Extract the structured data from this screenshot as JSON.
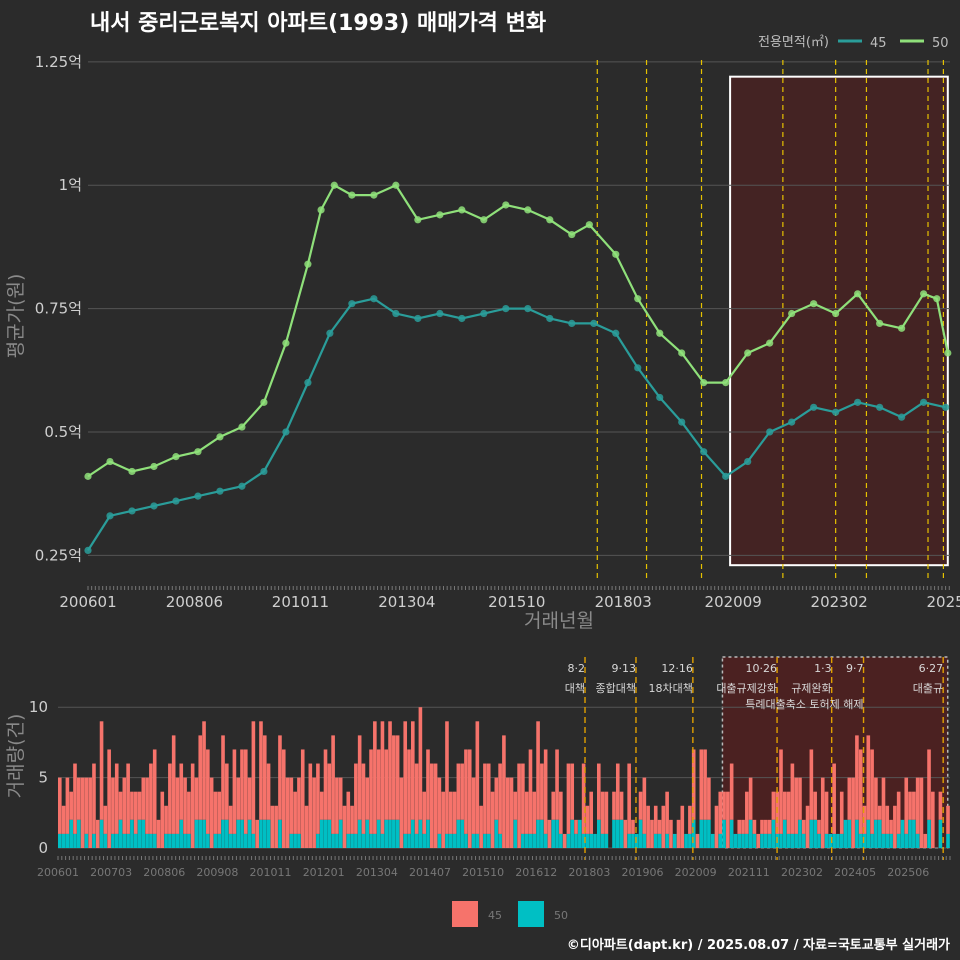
{
  "title": "내서 중리근로복지 아파트(1993) 매매가격 변화",
  "footer": "©디아파트(dapt.kr) / 2025.08.07 / 자료=국토교통부 실거래가",
  "colors": {
    "s45": "#2a9d9a",
    "s50": "#8fe07a",
    "bar45": "#f6736b",
    "bar50": "#00bfc4",
    "highlight": "#5a1e1e",
    "vline": "#e6c200",
    "grid": "#555555"
  },
  "chart_data": [
    {
      "type": "line",
      "ylabel": "평균가(원)",
      "xlabel": "거래년월",
      "legend_title": "전용면적(㎡)",
      "legend_position": "top-right",
      "grid": true,
      "xlim": [
        2006.0,
        2025.6
      ],
      "ylim": [
        0.2,
        1.27
      ],
      "y_ticks": [
        {
          "v": 0.25,
          "label": "0.25억"
        },
        {
          "v": 0.5,
          "label": "0.5억"
        },
        {
          "v": 0.75,
          "label": "0.75억"
        },
        {
          "v": 1.0,
          "label": "1억"
        },
        {
          "v": 1.25,
          "label": "1.25억"
        }
      ],
      "x_ticks": [
        {
          "v": 2006.0,
          "label": "200601"
        },
        {
          "v": 2008.42,
          "label": "200806"
        },
        {
          "v": 2010.83,
          "label": "201011"
        },
        {
          "v": 2013.25,
          "label": "201304"
        },
        {
          "v": 2015.75,
          "label": "201510"
        },
        {
          "v": 2018.17,
          "label": "201803"
        },
        {
          "v": 2020.67,
          "label": "202009"
        },
        {
          "v": 2023.08,
          "label": "202302"
        },
        {
          "v": 2025.5,
          "label": "2025"
        }
      ],
      "highlight_range": [
        2020.6,
        2025.55
      ],
      "event_lines": [
        2017.58,
        2018.7,
        2019.95,
        2021.8,
        2023.0,
        2023.7,
        2025.1,
        2025.45
      ],
      "series": [
        {
          "name": "45",
          "x": [
            2006.0,
            2006.5,
            2007.0,
            2007.5,
            2008.0,
            2008.5,
            2009.0,
            2009.5,
            2010.0,
            2010.5,
            2011.0,
            2011.5,
            2012.0,
            2012.5,
            2013.0,
            2013.5,
            2014.0,
            2014.5,
            2015.0,
            2015.5,
            2016.0,
            2016.5,
            2017.0,
            2017.5,
            2018.0,
            2018.5,
            2019.0,
            2019.5,
            2020.0,
            2020.5,
            2021.0,
            2021.5,
            2022.0,
            2022.5,
            2023.0,
            2023.5,
            2024.0,
            2024.5,
            2025.0,
            2025.5
          ],
          "y": [
            0.26,
            0.33,
            0.34,
            0.35,
            0.36,
            0.37,
            0.38,
            0.39,
            0.42,
            0.5,
            0.6,
            0.7,
            0.76,
            0.77,
            0.74,
            0.73,
            0.74,
            0.73,
            0.74,
            0.75,
            0.75,
            0.73,
            0.72,
            0.72,
            0.7,
            0.63,
            0.57,
            0.52,
            0.46,
            0.41,
            0.44,
            0.5,
            0.52,
            0.55,
            0.54,
            0.56,
            0.55,
            0.53,
            0.56,
            0.55
          ]
        },
        {
          "name": "50",
          "x": [
            2006.0,
            2006.5,
            2007.0,
            2007.5,
            2008.0,
            2008.5,
            2009.0,
            2009.5,
            2010.0,
            2010.5,
            2011.0,
            2011.3,
            2011.6,
            2012.0,
            2012.5,
            2013.0,
            2013.5,
            2014.0,
            2014.5,
            2015.0,
            2015.5,
            2016.0,
            2016.5,
            2017.0,
            2017.4,
            2018.0,
            2018.5,
            2019.0,
            2019.5,
            2020.0,
            2020.5,
            2021.0,
            2021.5,
            2022.0,
            2022.5,
            2023.0,
            2023.5,
            2024.0,
            2024.5,
            2025.0,
            2025.3,
            2025.55
          ],
          "y": [
            0.41,
            0.44,
            0.42,
            0.43,
            0.45,
            0.46,
            0.49,
            0.51,
            0.56,
            0.68,
            0.84,
            0.95,
            1.0,
            0.98,
            0.98,
            1.0,
            0.93,
            0.94,
            0.95,
            0.93,
            0.96,
            0.95,
            0.93,
            0.9,
            0.92,
            0.86,
            0.77,
            0.7,
            0.66,
            0.6,
            0.6,
            0.66,
            0.68,
            0.74,
            0.76,
            0.74,
            0.78,
            0.72,
            0.71,
            0.78,
            0.77,
            0.66
          ]
        }
      ]
    },
    {
      "type": "bar",
      "ylabel": "거래량(건)",
      "stacked": true,
      "ylim": [
        0,
        13
      ],
      "y_ticks": [
        0,
        5,
        10
      ],
      "x_ticks": [
        "200601",
        "200703",
        "200806",
        "200908",
        "201011",
        "201201",
        "201304",
        "201407",
        "201510",
        "201612",
        "201803",
        "201906",
        "202009",
        "202111",
        "202302",
        "202405",
        "202506"
      ],
      "highlight_range": [
        2020.6,
        2025.55
      ],
      "series": [
        {
          "name": "45"
        },
        {
          "name": "50"
        }
      ],
      "annotations": [
        {
          "x": 2017.58,
          "date": "8·2",
          "text": "대책"
        },
        {
          "x": 2018.7,
          "date": "9·13",
          "text": "종합대책"
        },
        {
          "x": 2019.95,
          "date": "12·16",
          "text": "18차대책"
        },
        {
          "x": 2021.8,
          "date": "10·26",
          "text": "대출규제강화"
        },
        {
          "x": 2023.0,
          "date": "1·3",
          "text": "규제완화"
        },
        {
          "x": 2023.7,
          "date": "9·7",
          "text": "특례대출축소 토허제 해제"
        },
        {
          "x": 2025.45,
          "date": "6·27",
          "text": "대출규"
        }
      ]
    }
  ]
}
